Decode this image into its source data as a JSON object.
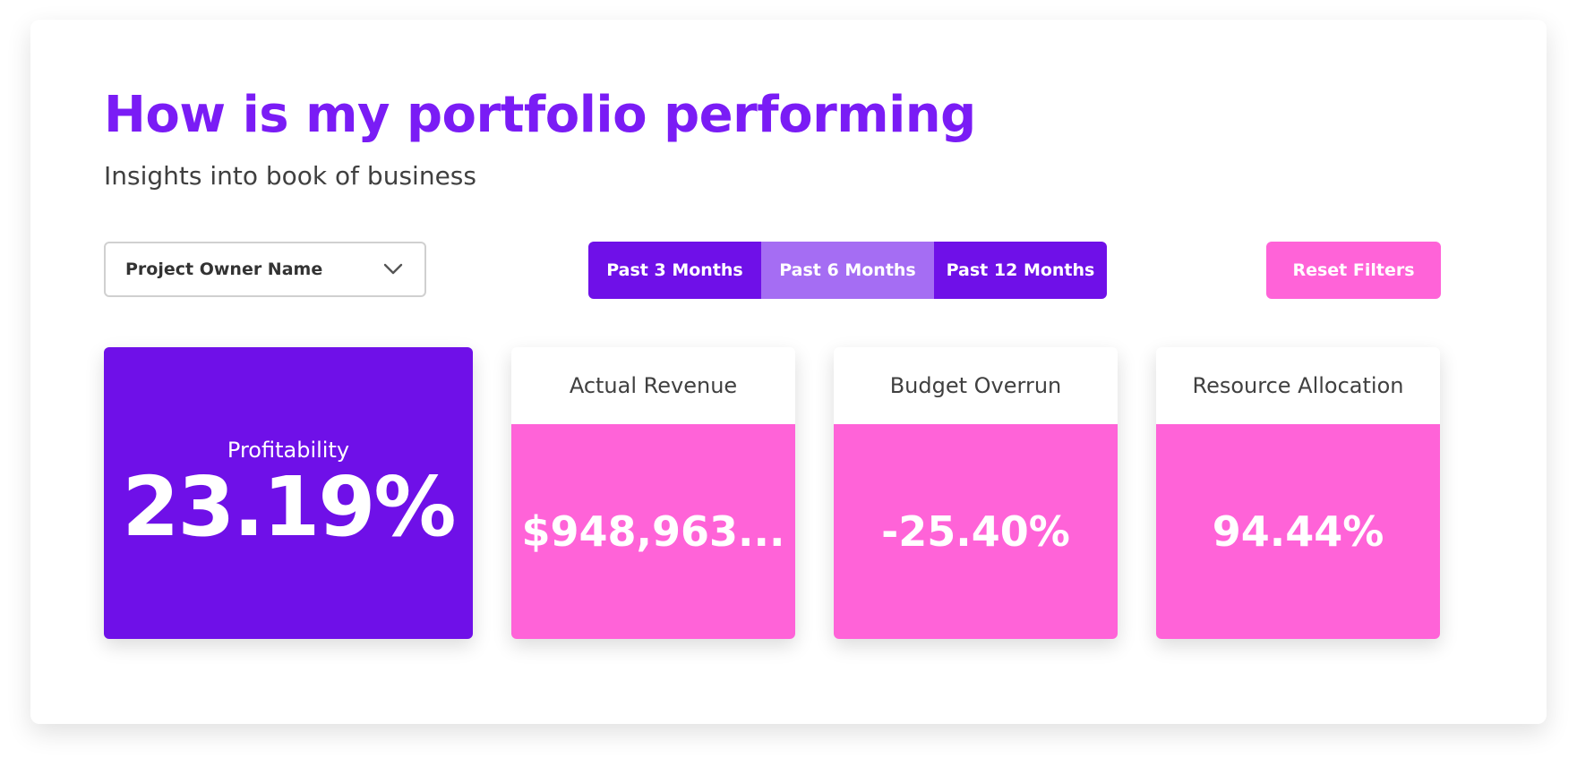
{
  "header": {
    "title": "How is my portfolio performing",
    "subtitle": "Insights into book of business"
  },
  "filters": {
    "owner_select": {
      "label": "Project Owner Name",
      "icon": "chevron-down-icon"
    },
    "periods": [
      {
        "label": "Past 3 Months",
        "active": false
      },
      {
        "label": "Past 6 Months",
        "active": true
      },
      {
        "label": "Past 12 Months",
        "active": false
      }
    ],
    "reset_label": "Reset Filters"
  },
  "kpis": {
    "profitability": {
      "label": "Profitability",
      "value": "23.19%"
    },
    "actual_revenue": {
      "label": "Actual Revenue",
      "value": "$948,963..."
    },
    "budget_overrun": {
      "label": "Budget Overrun",
      "value": "-25.40%"
    },
    "resource_allocation": {
      "label": "Resource Allocation",
      "value": "94.44%"
    }
  },
  "colors": {
    "title_purple": "#7a1cf5",
    "primary_purple": "#6f10e8",
    "active_purple": "#a56df3",
    "accent_pink": "#ff63d8"
  }
}
